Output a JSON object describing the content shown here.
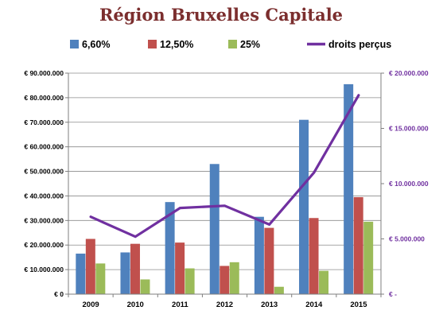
{
  "chart_data": {
    "type": "bar",
    "title": "Région Bruxelles Capitale",
    "categories": [
      "2009",
      "2010",
      "2011",
      "2012",
      "2013",
      "2014",
      "2015"
    ],
    "series": [
      {
        "name": "6,60%",
        "type": "bar",
        "axis": "left",
        "color": "#4f81bd",
        "values": [
          16500000,
          17000000,
          37500000,
          53000000,
          31500000,
          71000000,
          85500000
        ]
      },
      {
        "name": "12,50%",
        "type": "bar",
        "axis": "left",
        "color": "#c0504d",
        "values": [
          22500000,
          20500000,
          21000000,
          11500000,
          27000000,
          31000000,
          39500000
        ]
      },
      {
        "name": "25%",
        "type": "bar",
        "axis": "left",
        "color": "#9bbb59",
        "values": [
          12500000,
          6000000,
          10500000,
          13000000,
          3000000,
          9500000,
          29500000
        ]
      },
      {
        "name": "droits perçus",
        "type": "line",
        "axis": "right",
        "color": "#7030a0",
        "values": [
          7000000,
          5200000,
          7800000,
          8000000,
          6300000,
          11000000,
          18000000
        ]
      }
    ],
    "y_left": {
      "range": [
        0,
        90000000
      ],
      "ticks": [
        0,
        10000000,
        20000000,
        30000000,
        40000000,
        50000000,
        60000000,
        70000000,
        80000000,
        90000000
      ],
      "tick_labels": [
        "€ 0",
        "€ 10.000.000",
        "€ 20.000.000",
        "€ 30.000.000",
        "€ 40.000.000",
        "€ 50.000.000",
        "€ 60.000.000",
        "€ 70.000.000",
        "€ 80.000.000",
        "€ 90.000.000"
      ]
    },
    "y_right": {
      "range": [
        0,
        20000000
      ],
      "ticks": [
        0,
        5000000,
        10000000,
        15000000,
        20000000
      ],
      "tick_labels": [
        "€ -",
        "€ 5.000.000",
        "€ 10.000.000",
        "€ 15.000.000",
        "€ 20.000.000"
      ]
    },
    "grid": true,
    "legend": "top"
  }
}
